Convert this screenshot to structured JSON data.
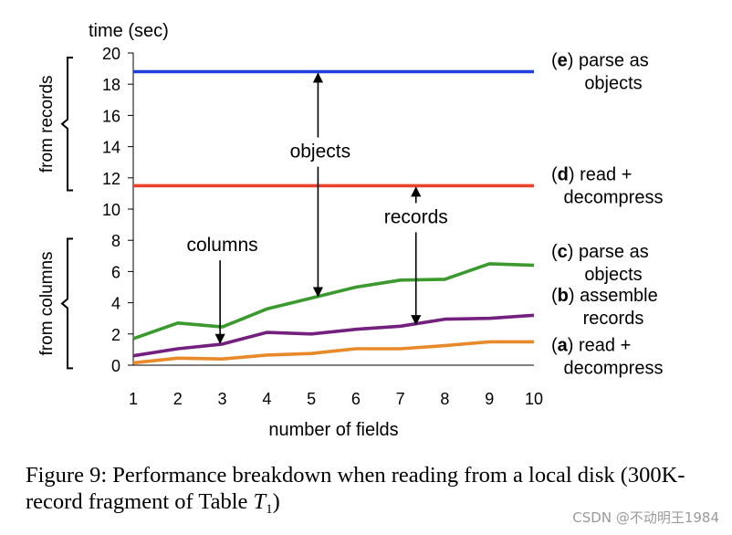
{
  "chart_data": {
    "type": "line",
    "ylabel": "time (sec)",
    "xlabel": "number of fields",
    "x": [
      1,
      2,
      3,
      4,
      5,
      6,
      7,
      8,
      9,
      10
    ],
    "ylim": [
      0,
      20
    ],
    "yticks": [
      0,
      2,
      4,
      6,
      8,
      10,
      12,
      14,
      16,
      18,
      20
    ],
    "series": [
      {
        "name": "(e) parse as objects",
        "color": "#1f3fe0",
        "values": [
          18.8,
          18.8,
          18.8,
          18.8,
          18.8,
          18.8,
          18.8,
          18.8,
          18.8,
          18.8
        ]
      },
      {
        "name": "(d) read + decompress",
        "color": "#e8432f",
        "values": [
          11.5,
          11.5,
          11.5,
          11.5,
          11.5,
          11.5,
          11.5,
          11.5,
          11.5,
          11.5
        ]
      },
      {
        "name": "(c) parse as objects",
        "color": "#3a9a2e",
        "values": [
          1.7,
          2.7,
          2.45,
          3.6,
          4.3,
          5.0,
          5.45,
          5.5,
          6.5,
          6.4
        ]
      },
      {
        "name": "(b) assemble records",
        "color": "#74207f",
        "values": [
          0.6,
          1.05,
          1.35,
          2.1,
          2.0,
          2.3,
          2.5,
          2.95,
          3.0,
          3.2
        ]
      },
      {
        "name": "(a) read + decompress",
        "color": "#e88a2a",
        "values": [
          0.15,
          0.45,
          0.4,
          0.65,
          0.75,
          1.05,
          1.05,
          1.25,
          1.5,
          1.5
        ]
      }
    ],
    "legend": [
      {
        "key": "e",
        "line1": " parse as",
        "line2": "objects",
        "level": 18.8
      },
      {
        "key": "d",
        "line1": " read +",
        "line2": "decompress",
        "level": 11.5
      },
      {
        "key": "c",
        "line1": " parse as",
        "line2": "objects",
        "level": 6.55
      },
      {
        "key": "b",
        "line1": " assemble",
        "line2": "records",
        "level": 3.75
      },
      {
        "key": "a",
        "line1": " read +",
        "line2": "decompress",
        "level": 0.55
      }
    ],
    "group_labels": {
      "top": "from records",
      "bottom": "from columns"
    },
    "annotations": [
      {
        "text": "objects",
        "tx": 5.2,
        "ty": 13.3,
        "arrow_x": 5.15,
        "from": 18.8,
        "to": 4.3,
        "two_way": true
      },
      {
        "text": "records",
        "tx": 7.35,
        "ty": 9.1,
        "arrow_x": 7.35,
        "from": 11.5,
        "to": 2.5,
        "two_way": true
      },
      {
        "text": "columns",
        "tx": 3.0,
        "ty": 7.3,
        "arrow_x": 2.95,
        "from": 6.2,
        "to": 1.3,
        "two_way": false
      }
    ]
  },
  "caption": {
    "text": "Figure 9: Performance breakdown when reading from a local disk (300K-record fragment of Table ",
    "t_symbol": "T",
    "t_sub": "1",
    "close": ")"
  },
  "watermark": "CSDN @不动明王1984"
}
